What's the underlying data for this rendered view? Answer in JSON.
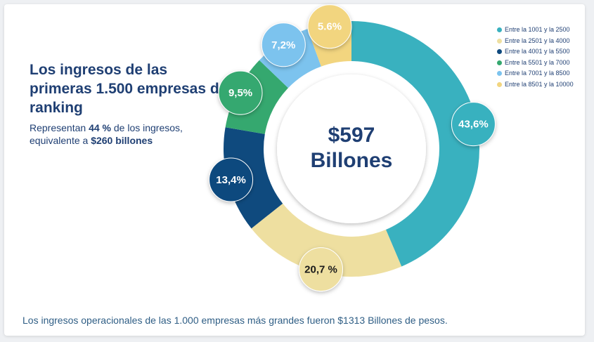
{
  "headline": "Los ingresos de las primeras 1.500 empresas del ranking",
  "subtext": {
    "prefix": "Representan ",
    "percent": "44 %",
    "middle": " de los ingresos,",
    "line2_prefix": "equivalente a ",
    "amount": "$260 billones"
  },
  "center": {
    "value": "$597",
    "unit": "Billones"
  },
  "footnote": "Los ingresos operacionales de las 1.000 empresas más grandes  fueron $1313  Billones de pesos.",
  "chart_data": {
    "type": "pie",
    "donut": true,
    "categories": [
      "Entre la 1001 y la 2500",
      "Entre la 2501 y la 4000",
      "Entre la 4001 y la 5500",
      "Entre la 5501 y la 7000",
      "Entre la 7001 y la 8500",
      "Entre la 8501 y la 10000"
    ],
    "values": [
      43.6,
      20.7,
      13.4,
      9.5,
      7.2,
      5.6
    ],
    "data_labels": [
      "43,6%",
      "20,7 %",
      "13,4%",
      "9,5%",
      "7,2%",
      "5.6%"
    ],
    "colors": [
      "#39b1bf",
      "#eedfa0",
      "#0f4a7e",
      "#35a86f",
      "#7cc3ee",
      "#f2d57f"
    ],
    "label_text_colors": [
      "#ffffff",
      "#1a1a1a",
      "#ffffff",
      "#ffffff",
      "#ffffff",
      "#ffffff"
    ],
    "legend_position": "top-right"
  }
}
